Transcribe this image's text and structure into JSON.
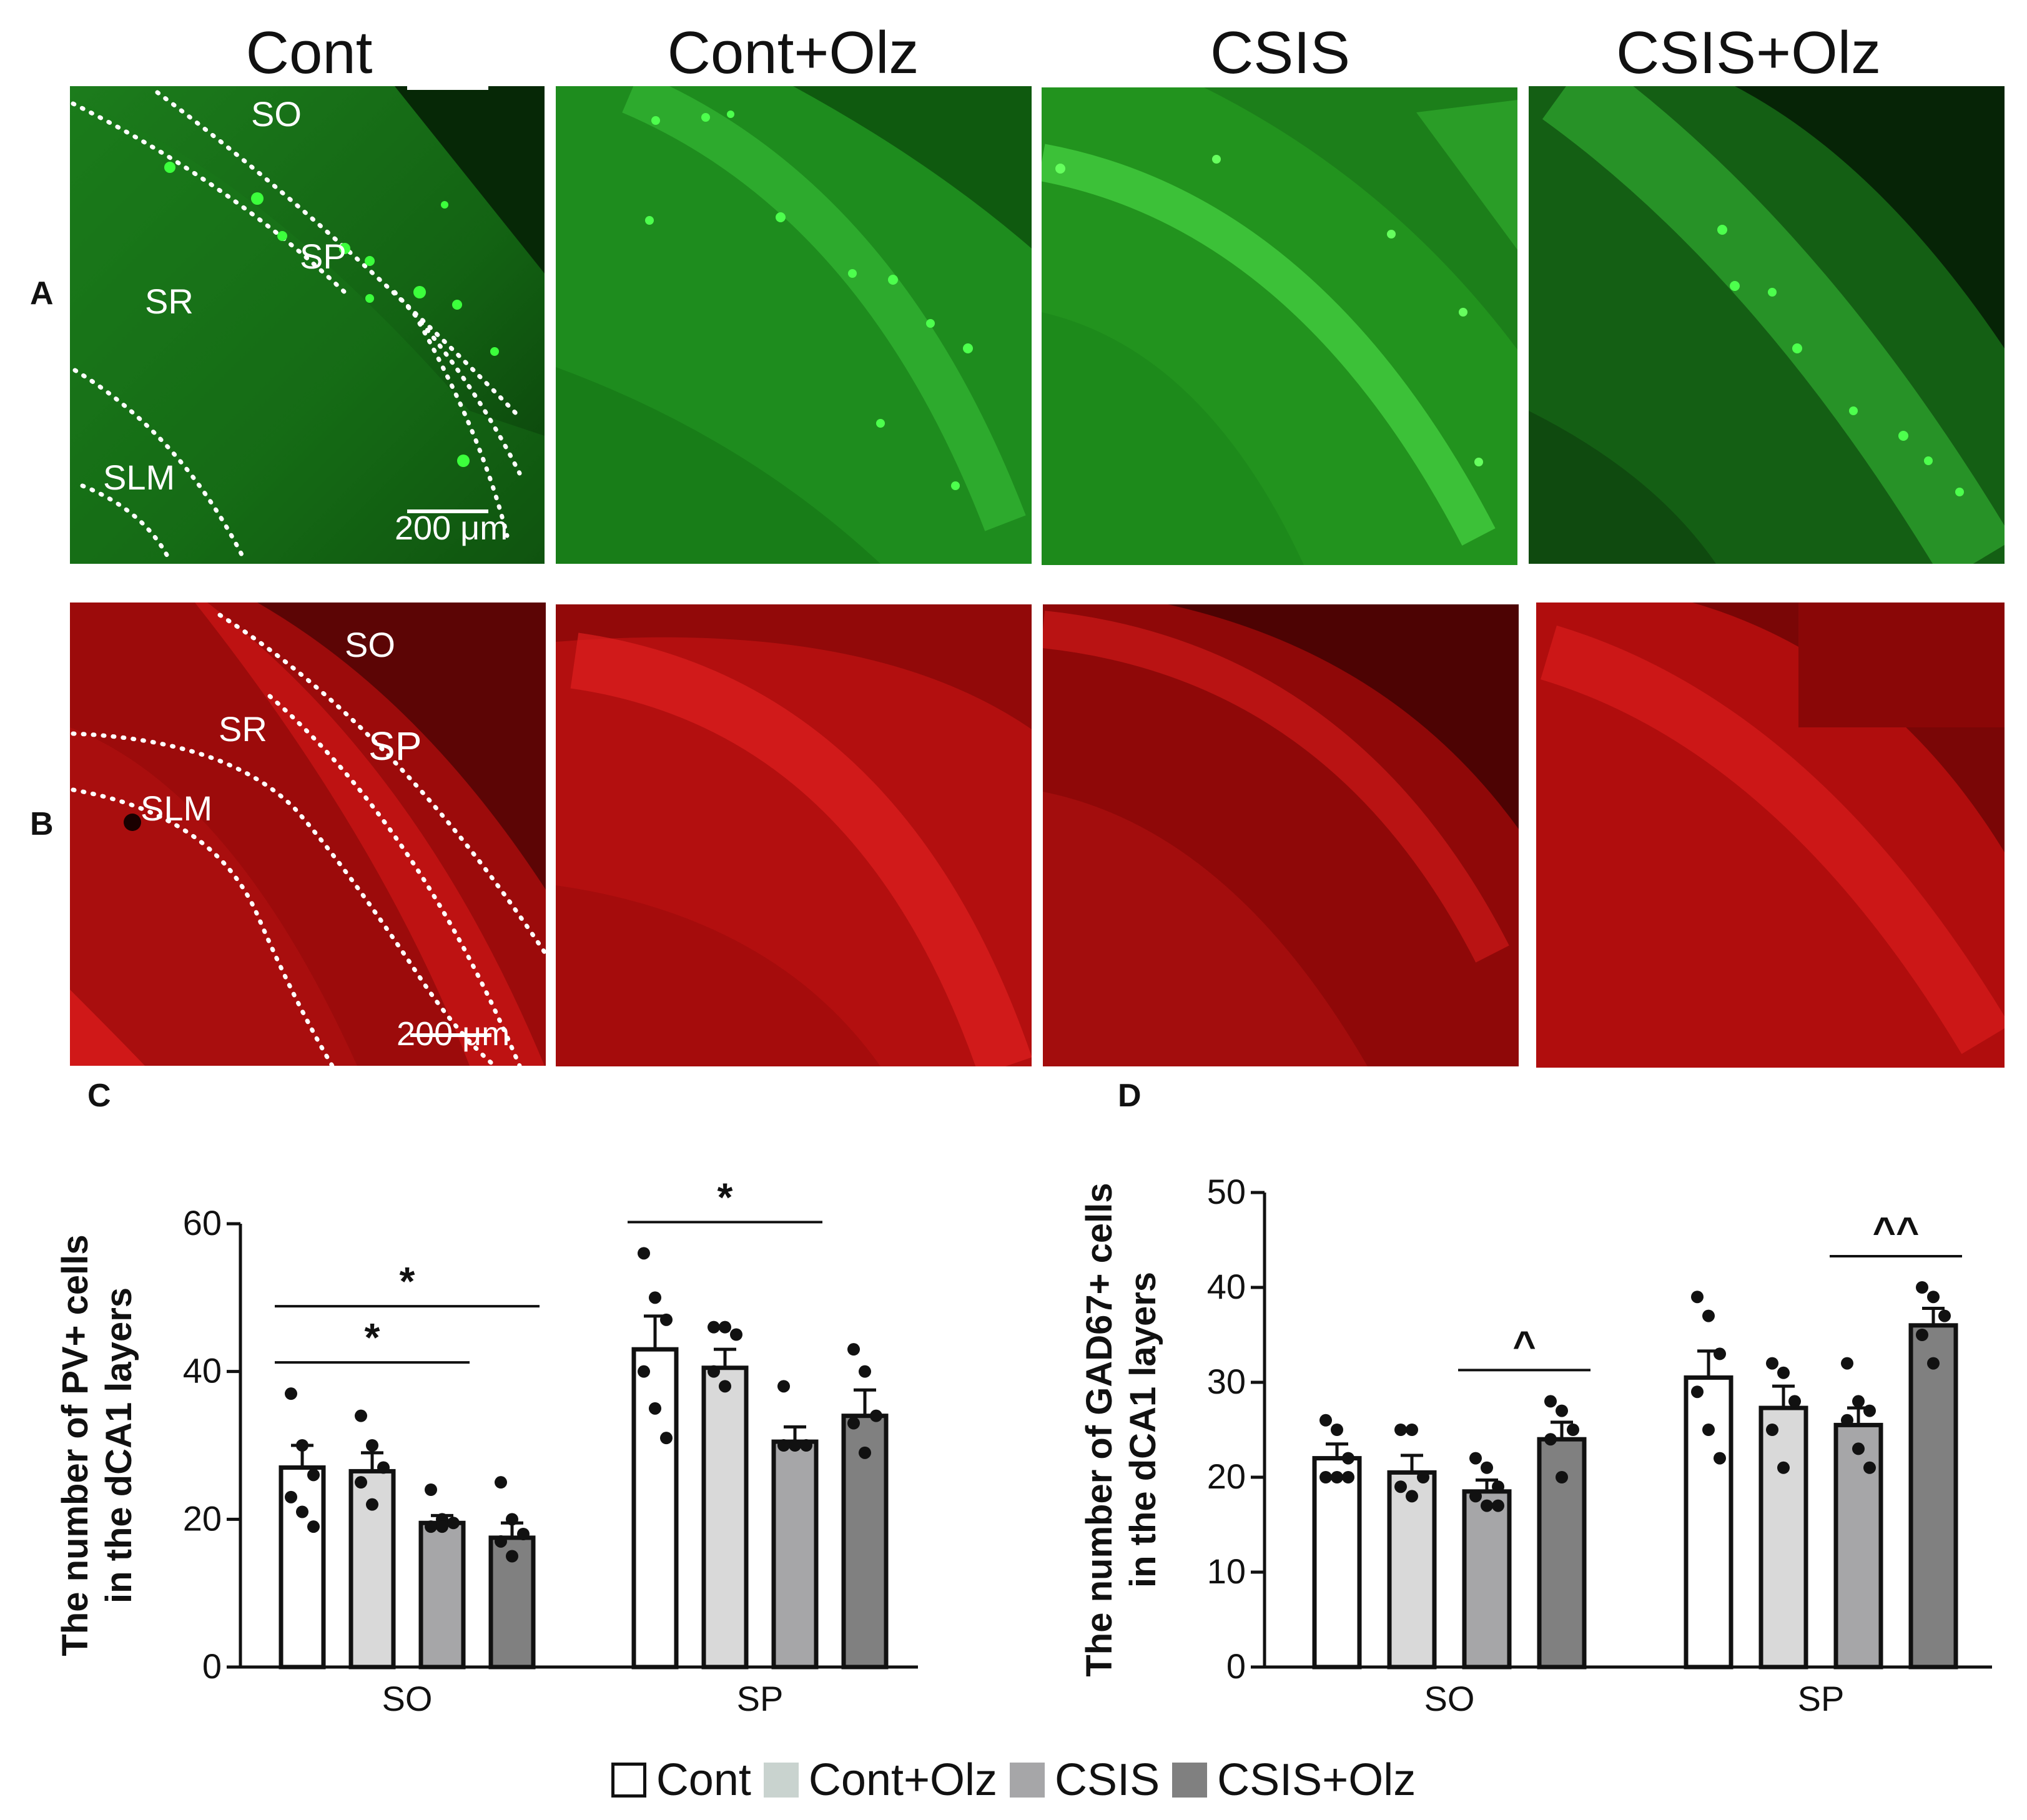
{
  "columns": [
    "Cont",
    "Cont+Olz",
    "CSIS",
    "CSIS+Olz"
  ],
  "row_labels": {
    "a": "A",
    "b": "B"
  },
  "panel_c_label": "C",
  "panel_d_label": "D",
  "annotations": {
    "layers_a": {
      "so": "SO",
      "sp": "SP",
      "sr": "SR",
      "slm": "SLM"
    },
    "layers_b": {
      "so": "SO",
      "sp": "SP",
      "sr": "SR",
      "slm": "SLM"
    },
    "scale_bar": "200 μm"
  },
  "colors": {
    "green_panel": "#1f8a1f",
    "red_panel": "#b80c0c",
    "cont": "#ffffff",
    "cont_olz": "#d9d9d9",
    "csis": "#a6a6a8",
    "csis_olz": "#808080"
  },
  "legend": [
    "Cont",
    "Cont+Olz",
    "CSIS",
    "CSIS+Olz"
  ],
  "chart_data": [
    {
      "type": "bar",
      "ylabel": "The number of PV+ cells in the dCA1 layers",
      "ylabel_lines": [
        "The number of PV+ cells",
        "in the dCA1 layers"
      ],
      "categories": [
        "SO",
        "SP"
      ],
      "ylim": [
        0,
        60
      ],
      "yticks": [
        0,
        20,
        40,
        60
      ],
      "series": [
        {
          "name": "Cont",
          "values": [
            27,
            43
          ],
          "errors": [
            3,
            4.5
          ]
        },
        {
          "name": "Cont+Olz",
          "values": [
            26.5,
            40.5
          ],
          "errors": [
            2.5,
            2.5
          ]
        },
        {
          "name": "CSIS",
          "values": [
            19.5,
            30.5
          ],
          "errors": [
            1,
            2
          ]
        },
        {
          "name": "CSIS+Olz",
          "values": [
            17.5,
            34
          ],
          "errors": [
            2,
            3.5
          ]
        }
      ],
      "points": [
        [
          [
            37,
            30,
            26,
            23,
            21,
            19
          ],
          [
            56,
            50,
            47,
            40,
            35,
            31
          ]
        ],
        [
          [
            34,
            30,
            27,
            25,
            22
          ],
          [
            46,
            46,
            45,
            40,
            38
          ]
        ],
        [
          [
            24,
            20,
            19.5,
            19,
            19
          ],
          [
            38,
            30,
            30,
            30
          ]
        ],
        [
          [
            25,
            20,
            18,
            17,
            15
          ],
          [
            43,
            40,
            34,
            33,
            29
          ]
        ]
      ],
      "significance": [
        {
          "category": 0,
          "from": 0,
          "to": 2,
          "label": "*"
        },
        {
          "category": 0,
          "from": 0,
          "to": 3,
          "label": "*"
        },
        {
          "category": 1,
          "from": 0,
          "to": 2,
          "label": "*"
        }
      ]
    },
    {
      "type": "bar",
      "ylabel": "The number of GAD67+ cells in the dCA1 layers",
      "ylabel_lines": [
        "The number of GAD67+ cells",
        "in the dCA1 layers"
      ],
      "categories": [
        "SO",
        "SP"
      ],
      "ylim": [
        0,
        50
      ],
      "yticks": [
        0,
        10,
        20,
        30,
        40,
        50
      ],
      "series": [
        {
          "name": "Cont",
          "values": [
            22,
            30.5
          ],
          "errors": [
            1.5,
            2.8
          ]
        },
        {
          "name": "Cont+Olz",
          "values": [
            20.5,
            27.3
          ],
          "errors": [
            1.8,
            2.3
          ]
        },
        {
          "name": "CSIS",
          "values": [
            18.5,
            25.5
          ],
          "errors": [
            1.2,
            1.8
          ]
        },
        {
          "name": "CSIS+Olz",
          "values": [
            24,
            36
          ],
          "errors": [
            1.8,
            1.8
          ]
        }
      ],
      "points": [
        [
          [
            26,
            25,
            22,
            20,
            20,
            20
          ],
          [
            39,
            37,
            33,
            29,
            25,
            22
          ]
        ],
        [
          [
            25,
            25,
            20,
            19,
            18
          ],
          [
            32,
            31,
            28,
            25,
            21
          ]
        ],
        [
          [
            22,
            21,
            19,
            18,
            17,
            17
          ],
          [
            32,
            28,
            27,
            26,
            23,
            21
          ]
        ],
        [
          [
            28,
            27,
            25,
            24,
            20
          ],
          [
            40,
            39,
            37,
            35,
            32
          ]
        ]
      ],
      "significance": [
        {
          "category": 0,
          "from": 2,
          "to": 3,
          "label": "^"
        },
        {
          "category": 1,
          "from": 2,
          "to": 3,
          "label": "^^"
        }
      ]
    }
  ]
}
